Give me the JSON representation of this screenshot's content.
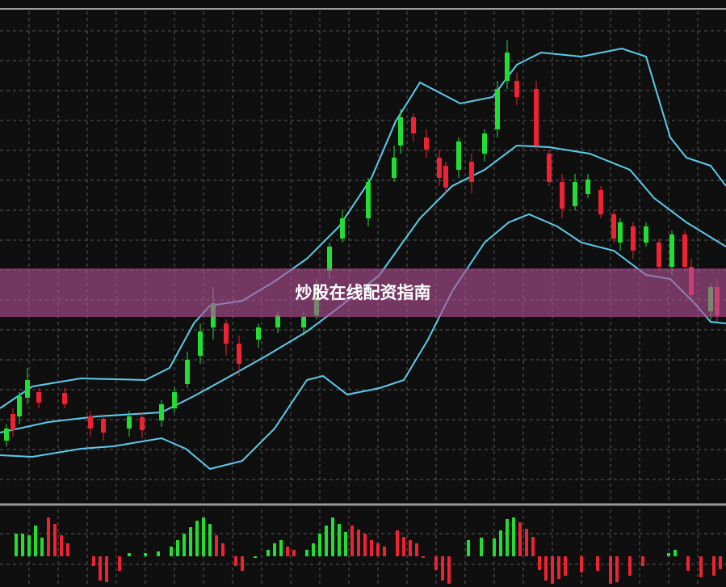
{
  "banner": {
    "title": "炒股在线配资指南"
  }
}
